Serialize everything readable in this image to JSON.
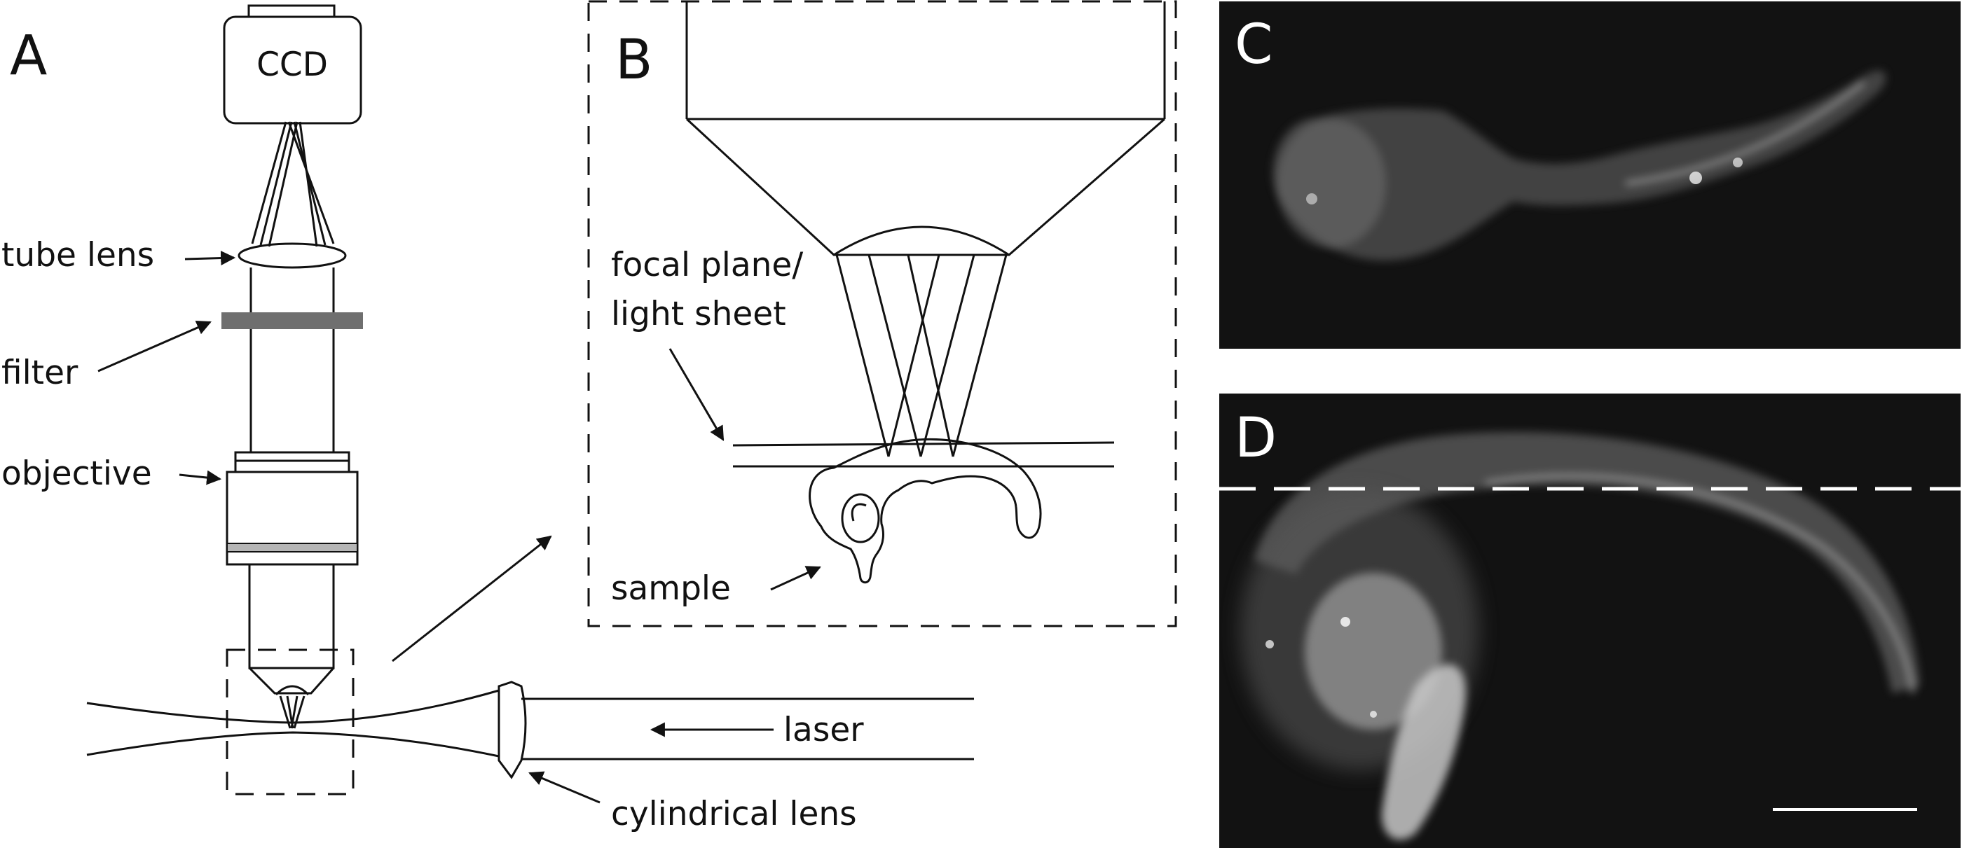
{
  "panels": {
    "a": "A",
    "b": "B",
    "c": "C",
    "d": "D"
  },
  "labels": {
    "ccd": "CCD",
    "tube_lens": "tube lens",
    "filter": "filter",
    "objective": "objective",
    "focal_plane_line1": "focal plane/",
    "focal_plane_line2": "light sheet",
    "sample": "sample",
    "laser": "laser",
    "cylindrical_lens": "cylindrical lens"
  },
  "colors": {
    "line": "#111111",
    "filter": "#6f6f6f",
    "objective_band": "#b5b5b5",
    "micrograph_bg": "#121212",
    "fluorescence": "#e6e6e6"
  }
}
